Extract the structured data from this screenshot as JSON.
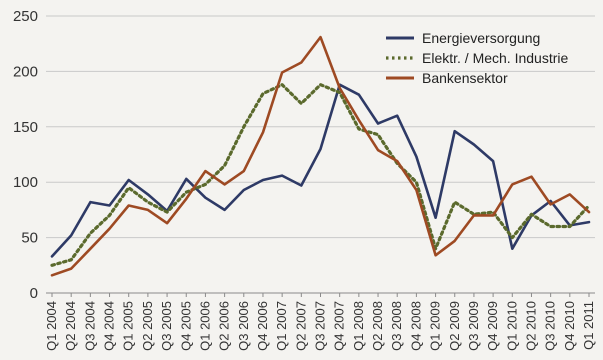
{
  "chart_data": {
    "type": "line",
    "title": "",
    "xlabel": "",
    "ylabel": "",
    "ylim": [
      0,
      250
    ],
    "yticks": [
      0,
      50,
      100,
      150,
      200,
      250
    ],
    "grid": true,
    "legend_position": "top-right",
    "categories": [
      "Q1 2004",
      "Q2 2004",
      "Q3 2004",
      "Q4 2004",
      "Q1 2005",
      "Q2 2005",
      "Q3 2005",
      "Q4 2005",
      "Q1 2006",
      "Q2 2006",
      "Q3 2006",
      "Q4 2006",
      "Q1 2007",
      "Q2 2007",
      "Q3 2007",
      "Q4 2007",
      "Q1 2008",
      "Q2 2008",
      "Q3 2008",
      "Q4 2008",
      "Q1 2009",
      "Q2 2009",
      "Q3 2009",
      "Q4 2009",
      "Q1 2010",
      "Q2 2010",
      "Q3 2010",
      "Q4 2010",
      "Q1 2011"
    ],
    "series": [
      {
        "name": "Energieversorgung",
        "color": "#2e3a66",
        "style": "solid",
        "values": [
          33,
          52,
          82,
          79,
          102,
          89,
          74,
          103,
          86,
          75,
          93,
          102,
          106,
          97,
          130,
          188,
          179,
          153,
          160,
          123,
          68,
          146,
          134,
          119,
          40,
          70,
          83,
          61,
          64
        ]
      },
      {
        "name": "Elektr. / Mech. Industrie",
        "color": "#5b6a2d",
        "style": "dotted",
        "values": [
          25,
          30,
          54,
          70,
          95,
          82,
          73,
          91,
          98,
          115,
          150,
          180,
          188,
          171,
          188,
          181,
          148,
          143,
          117,
          100,
          40,
          82,
          71,
          73,
          50,
          71,
          60,
          60,
          79
        ]
      },
      {
        "name": "Bankensektor",
        "color": "#9e4a23",
        "style": "solid",
        "values": [
          16,
          22,
          40,
          58,
          79,
          75,
          63,
          85,
          110,
          98,
          110,
          145,
          199,
          208,
          231,
          185,
          156,
          129,
          119,
          93,
          34,
          47,
          70,
          70,
          98,
          105,
          80,
          89,
          73
        ]
      }
    ]
  }
}
